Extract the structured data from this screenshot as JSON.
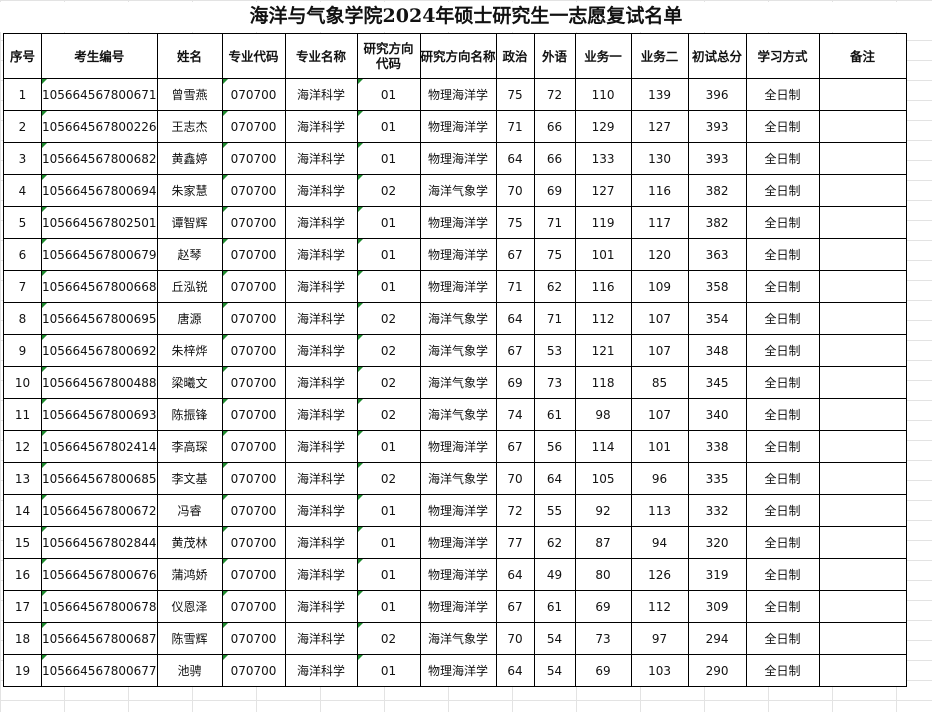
{
  "title": "海洋与气象学院2024年硕士研究生一志愿复试名单",
  "headers": [
    "序号",
    "考生编号",
    "姓名",
    "专业代码",
    "专业名称",
    "研究方向代码",
    "研究方向名称",
    "政治",
    "外语",
    "业务一",
    "业务二",
    "初试总分",
    "学习方式",
    "备注"
  ],
  "rows": [
    [
      "1",
      "105664567800671",
      "曾雪燕",
      "070700",
      "海洋科学",
      "01",
      "物理海洋学",
      "75",
      "72",
      "110",
      "139",
      "396",
      "全日制",
      ""
    ],
    [
      "2",
      "105664567800226",
      "王志杰",
      "070700",
      "海洋科学",
      "01",
      "物理海洋学",
      "71",
      "66",
      "129",
      "127",
      "393",
      "全日制",
      ""
    ],
    [
      "3",
      "105664567800682",
      "黄鑫婷",
      "070700",
      "海洋科学",
      "01",
      "物理海洋学",
      "64",
      "66",
      "133",
      "130",
      "393",
      "全日制",
      ""
    ],
    [
      "4",
      "105664567800694",
      "朱家慧",
      "070700",
      "海洋科学",
      "02",
      "海洋气象学",
      "70",
      "69",
      "127",
      "116",
      "382",
      "全日制",
      ""
    ],
    [
      "5",
      "105664567802501",
      "谭智辉",
      "070700",
      "海洋科学",
      "01",
      "物理海洋学",
      "75",
      "71",
      "119",
      "117",
      "382",
      "全日制",
      ""
    ],
    [
      "6",
      "105664567800679",
      "赵琴",
      "070700",
      "海洋科学",
      "01",
      "物理海洋学",
      "67",
      "75",
      "101",
      "120",
      "363",
      "全日制",
      ""
    ],
    [
      "7",
      "105664567800668",
      "丘泓锐",
      "070700",
      "海洋科学",
      "01",
      "物理海洋学",
      "71",
      "62",
      "116",
      "109",
      "358",
      "全日制",
      ""
    ],
    [
      "8",
      "105664567800695",
      "唐源",
      "070700",
      "海洋科学",
      "02",
      "海洋气象学",
      "64",
      "71",
      "112",
      "107",
      "354",
      "全日制",
      ""
    ],
    [
      "9",
      "105664567800692",
      "朱梓烨",
      "070700",
      "海洋科学",
      "02",
      "海洋气象学",
      "67",
      "53",
      "121",
      "107",
      "348",
      "全日制",
      ""
    ],
    [
      "10",
      "105664567800488",
      "梁曦文",
      "070700",
      "海洋科学",
      "02",
      "海洋气象学",
      "69",
      "73",
      "118",
      "85",
      "345",
      "全日制",
      ""
    ],
    [
      "11",
      "105664567800693",
      "陈振锋",
      "070700",
      "海洋科学",
      "02",
      "海洋气象学",
      "74",
      "61",
      "98",
      "107",
      "340",
      "全日制",
      ""
    ],
    [
      "12",
      "105664567802414",
      "李高琛",
      "070700",
      "海洋科学",
      "01",
      "物理海洋学",
      "67",
      "56",
      "114",
      "101",
      "338",
      "全日制",
      ""
    ],
    [
      "13",
      "105664567800685",
      "李文基",
      "070700",
      "海洋科学",
      "02",
      "海洋气象学",
      "70",
      "64",
      "105",
      "96",
      "335",
      "全日制",
      ""
    ],
    [
      "14",
      "105664567800672",
      "冯睿",
      "070700",
      "海洋科学",
      "01",
      "物理海洋学",
      "72",
      "55",
      "92",
      "113",
      "332",
      "全日制",
      ""
    ],
    [
      "15",
      "105664567802844",
      "黄茂林",
      "070700",
      "海洋科学",
      "01",
      "物理海洋学",
      "77",
      "62",
      "87",
      "94",
      "320",
      "全日制",
      ""
    ],
    [
      "16",
      "105664567800676",
      "蒲鸿娇",
      "070700",
      "海洋科学",
      "01",
      "物理海洋学",
      "64",
      "49",
      "80",
      "126",
      "319",
      "全日制",
      ""
    ],
    [
      "17",
      "105664567800678",
      "仪恩泽",
      "070700",
      "海洋科学",
      "01",
      "物理海洋学",
      "67",
      "61",
      "69",
      "112",
      "309",
      "全日制",
      ""
    ],
    [
      "18",
      "105664567800687",
      "陈雪辉",
      "070700",
      "海洋科学",
      "02",
      "海洋气象学",
      "70",
      "54",
      "73",
      "97",
      "294",
      "全日制",
      ""
    ],
    [
      "19",
      "105664567800677",
      "池骋",
      "070700",
      "海洋科学",
      "01",
      "物理海洋学",
      "64",
      "54",
      "69",
      "103",
      "290",
      "全日制",
      ""
    ]
  ]
}
